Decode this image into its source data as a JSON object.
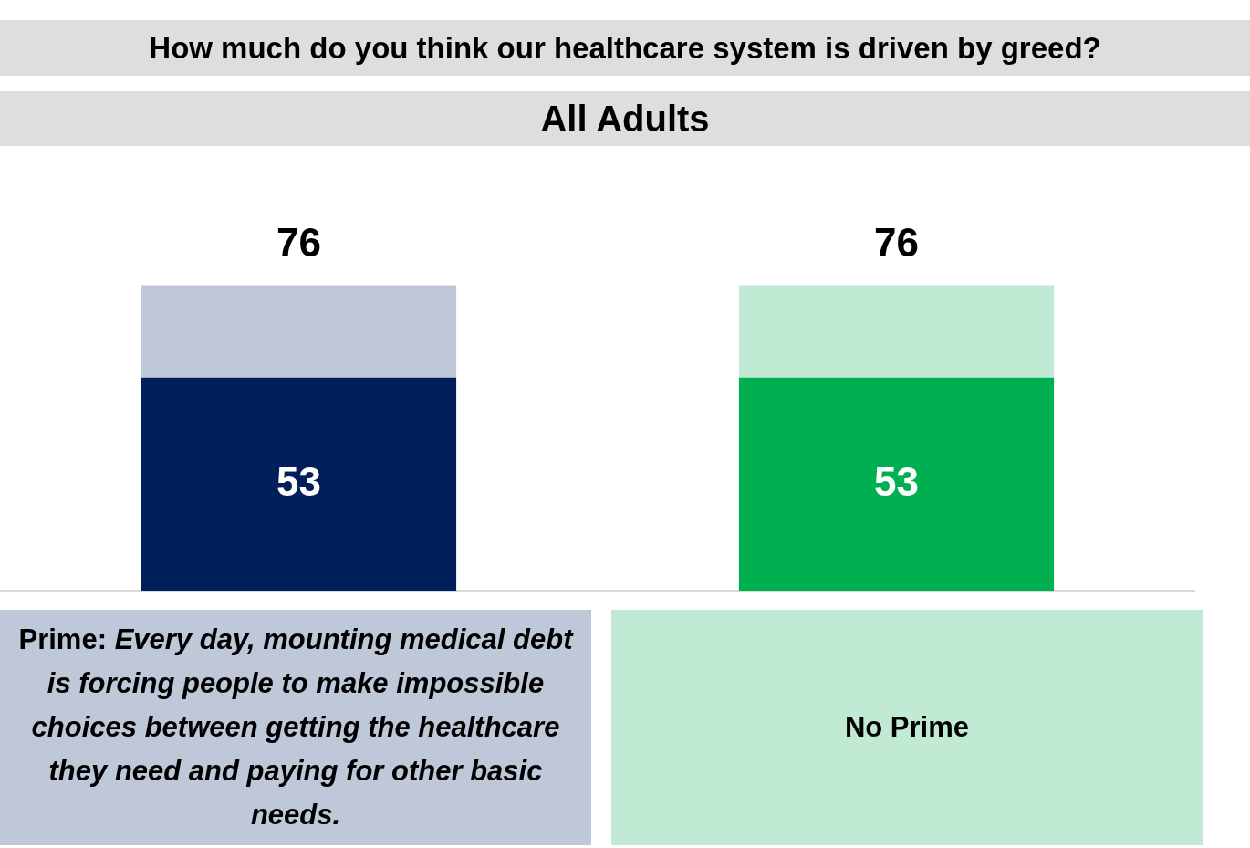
{
  "chart_data": {
    "type": "bar",
    "title": "How much do you think our healthcare system is driven by greed?",
    "subtitle": "All Adults",
    "categories": [
      "Prime: Every day, mounting medical debt is forcing people to make impossible choices between getting the healthcare they need and paying for other basic needs.",
      "No Prime"
    ],
    "stacked": true,
    "series": [
      {
        "colors": [
          "#001f5b",
          "#00b050"
        ],
        "values": [
          53,
          53
        ],
        "value_labels": [
          "53",
          "53"
        ]
      },
      {
        "colors": [
          "#bfc8d8",
          "#c0ead4"
        ],
        "values": [
          23,
          23
        ]
      }
    ],
    "totals": [
      "76",
      "76"
    ],
    "grid": false,
    "legend": false
  }
}
